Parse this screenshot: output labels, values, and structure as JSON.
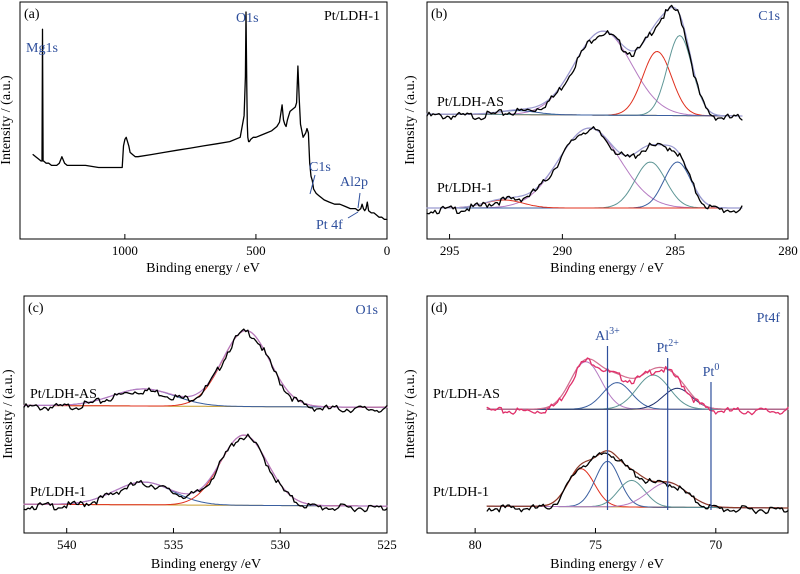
{
  "chart_data": [
    {
      "id": "a",
      "type": "line",
      "panel_label": "(a)",
      "title": "Pt/LDH-1",
      "xlabel": "Binding energy / eV",
      "ylabel": "Intensity / (a.u.)",
      "xlim": [
        1400,
        0
      ],
      "ylim": [
        0,
        100
      ],
      "x_reversed": true,
      "xticks": [
        1000,
        500,
        0
      ],
      "yticks_shown": false,
      "series": [
        {
          "color": "#000000",
          "x": [
            1350,
            1340,
            1330,
            1320,
            1316,
            1314,
            1312,
            1310,
            1300,
            1290,
            1280,
            1270,
            1260,
            1250,
            1240,
            1230,
            1220,
            1200,
            1150,
            1100,
            1050,
            1010,
            1005,
            1000,
            995,
            990,
            985,
            980,
            970,
            960,
            950,
            900,
            850,
            800,
            750,
            700,
            650,
            600,
            560,
            545,
            540,
            538,
            535,
            533,
            531,
            528,
            525,
            520,
            510,
            500,
            480,
            460,
            440,
            420,
            410,
            400,
            395,
            390,
            385,
            380,
            375,
            370,
            360,
            350,
            345,
            340,
            335,
            330,
            320,
            310,
            305,
            300,
            295,
            290,
            285,
            280,
            270,
            260,
            250,
            240,
            220,
            200,
            180,
            160,
            140,
            120,
            110,
            100,
            95,
            90,
            85,
            80,
            75,
            70,
            60,
            50,
            40,
            30,
            20,
            10,
            0
          ],
          "y": [
            34,
            33,
            32,
            31,
            31,
            92,
            31,
            31,
            30,
            30,
            29,
            29,
            29,
            30,
            33,
            30,
            29,
            29,
            29,
            28,
            28,
            28,
            38,
            41,
            42,
            40,
            38,
            35,
            34,
            33,
            33,
            34,
            35,
            36,
            37,
            38,
            39,
            40,
            42,
            52,
            70,
            100,
            65,
            48,
            42,
            40,
            40,
            41,
            42,
            42,
            43,
            44,
            45,
            47,
            49,
            57,
            50,
            48,
            47,
            50,
            52,
            54,
            55,
            56,
            58,
            75,
            60,
            48,
            42,
            44,
            46,
            44,
            30,
            24,
            22,
            18,
            16,
            15,
            14,
            13,
            12,
            11,
            11,
            10,
            9,
            9,
            8,
            9,
            11,
            9,
            8,
            9,
            12,
            8,
            7,
            7,
            6,
            5,
            5,
            4,
            4
          ]
        }
      ],
      "annotations": [
        {
          "text": "Mg1s",
          "x": 1304
        },
        {
          "text": "O1s",
          "x": 531
        },
        {
          "text": "C1s",
          "x": 285
        },
        {
          "text": "Al2p",
          "x": 74
        },
        {
          "text": "Pt 4f",
          "x": 71
        }
      ]
    },
    {
      "id": "b",
      "type": "line",
      "panel_label": "(b)",
      "title": "C1s",
      "xlabel": "Binding energy / eV",
      "ylabel": "Intensity / (a.u.)",
      "xlim": [
        296,
        280
      ],
      "ylim": [
        0,
        100
      ],
      "x_reversed": true,
      "xticks": [
        295,
        290,
        285,
        280
      ],
      "samples": [
        {
          "name": "Pt/LDH-AS",
          "offset": 48,
          "raw_color": "#000000",
          "fit_color": "#9b9bd0",
          "background": [
            [
              296,
              2
            ],
            [
              282,
              1
            ]
          ],
          "components": [
            {
              "color": "#b57bc2",
              "center": 288.2,
              "fwhm": 3.0,
              "height": 42
            },
            {
              "color": "#e0301e",
              "center": 285.8,
              "fwhm": 1.5,
              "height": 32
            },
            {
              "color": "#5e9696",
              "center": 284.8,
              "fwhm": 1.3,
              "height": 40
            },
            {
              "color": "#3a5fa0",
              "center": 292.0,
              "fwhm": 2.0,
              "height": 2
            }
          ]
        },
        {
          "name": "Pt/LDH-1",
          "offset": 0,
          "raw_color": "#000000",
          "fit_color": "#9b9bd0",
          "background": [
            [
              296,
              3
            ],
            [
              282,
              3
            ]
          ],
          "components": [
            {
              "color": "#b57bc2",
              "center": 288.8,
              "fwhm": 3.2,
              "height": 40
            },
            {
              "color": "#5e9696",
              "center": 286.1,
              "fwhm": 1.6,
              "height": 23
            },
            {
              "color": "#3a5fa0",
              "center": 284.9,
              "fwhm": 1.4,
              "height": 23
            },
            {
              "color": "#e0301e",
              "center": 292.6,
              "fwhm": 2.0,
              "height": 4
            }
          ]
        }
      ]
    },
    {
      "id": "c",
      "type": "line",
      "panel_label": "(c)",
      "title": "O1s",
      "xlabel": "Binding energy /eV",
      "ylabel": "Intensity / (a.u.)",
      "xlim": [
        542,
        525
      ],
      "ylim": [
        0,
        100
      ],
      "x_reversed": true,
      "xticks": [
        540,
        535,
        530,
        525
      ],
      "samples": [
        {
          "name": "Pt/LDH-AS",
          "offset": 52,
          "raw_color": "#000000",
          "fit_color": "#b57bc2",
          "background": [
            [
              542,
              2
            ],
            [
              525,
              1
            ]
          ],
          "components": [
            {
              "color": "#3a5fa0",
              "center": 536.4,
              "fwhm": 3.4,
              "height": 9
            },
            {
              "color": "#e0301e",
              "center": 531.6,
              "fwhm": 2.6,
              "height": 40
            }
          ]
        },
        {
          "name": "Pt/LDH-1",
          "offset": 0,
          "raw_color": "#000000",
          "fit_color": "#b57bc2",
          "background": [
            [
              542,
              2
            ],
            [
              525,
              1
            ]
          ],
          "components": [
            {
              "color": "#3a5fa0",
              "center": 536.4,
              "fwhm": 3.2,
              "height": 12
            },
            {
              "color": "#e0301e",
              "center": 531.7,
              "fwhm": 2.6,
              "height": 37
            }
          ]
        }
      ]
    },
    {
      "id": "d",
      "type": "line",
      "panel_label": "(d)",
      "title": "Pt4f",
      "xlabel": "Binding energy / eV",
      "ylabel": "Intensity / (a.u.)",
      "xlim": [
        82,
        67
      ],
      "ylim": [
        0,
        100
      ],
      "x_reversed": true,
      "xticks": [
        80,
        75,
        70
      ],
      "samples": [
        {
          "name": "Pt/LDH-AS",
          "offset": 52,
          "raw_color": "#e0306a",
          "fit_color": "#d26f8f",
          "background": [
            [
              79.5,
              0
            ],
            [
              67,
              0
            ]
          ],
          "components": [
            {
              "color": "#b57bc2",
              "center": 75.4,
              "fwhm": 1.5,
              "height": 25
            },
            {
              "color": "#3a5fa0",
              "center": 74.1,
              "fwhm": 1.4,
              "height": 14
            },
            {
              "color": "#5e9696",
              "center": 72.6,
              "fwhm": 1.6,
              "height": 18
            },
            {
              "color": "#1f2f6e",
              "center": 71.6,
              "fwhm": 1.4,
              "height": 11
            }
          ]
        },
        {
          "name": "Pt/LDH-1",
          "offset": 0,
          "raw_color": "#000000",
          "fit_color": "#8c3a2a",
          "background": [
            [
              79.5,
              1
            ],
            [
              67,
              0
            ]
          ],
          "components": [
            {
              "color": "#e0301e",
              "center": 75.6,
              "fwhm": 1.3,
              "height": 20
            },
            {
              "color": "#3a5fa0",
              "center": 74.5,
              "fwhm": 1.2,
              "height": 24
            },
            {
              "color": "#5e9696",
              "center": 73.5,
              "fwhm": 1.3,
              "height": 14
            },
            {
              "color": "#b57bc2",
              "center": 72.0,
              "fwhm": 1.9,
              "height": 13
            }
          ]
        }
      ],
      "reference_lines": [
        {
          "label": "Al",
          "sup": "3+",
          "x": 74.5
        },
        {
          "label": "Pt",
          "sup": "2+",
          "x": 72.0
        },
        {
          "label": "Pt",
          "sup": "0",
          "x": 70.2
        }
      ]
    }
  ]
}
